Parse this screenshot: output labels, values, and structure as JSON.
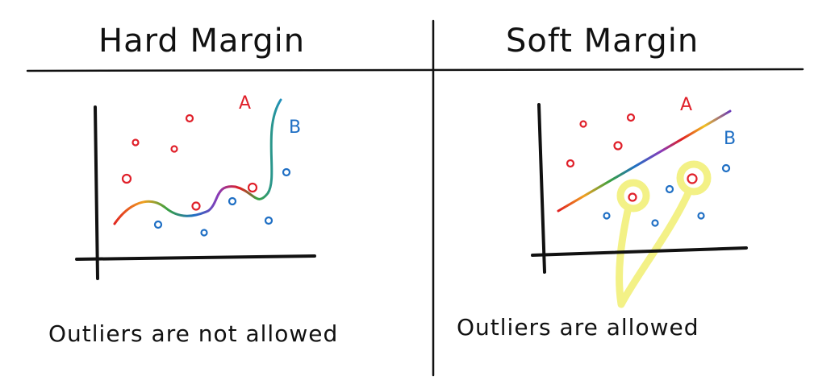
{
  "left_panel": {
    "title": "Hard Margin",
    "caption": "Outliers are not allowed",
    "label_a": "A",
    "label_b": "B"
  },
  "right_panel": {
    "title": "Soft Margin",
    "caption": "Outliers are allowed",
    "label_a": "A",
    "label_b": "B"
  },
  "colors": {
    "class_a": "#e0202a",
    "class_b": "#1f6fc4",
    "highlight": "#f2f07a",
    "ink": "#111111"
  }
}
